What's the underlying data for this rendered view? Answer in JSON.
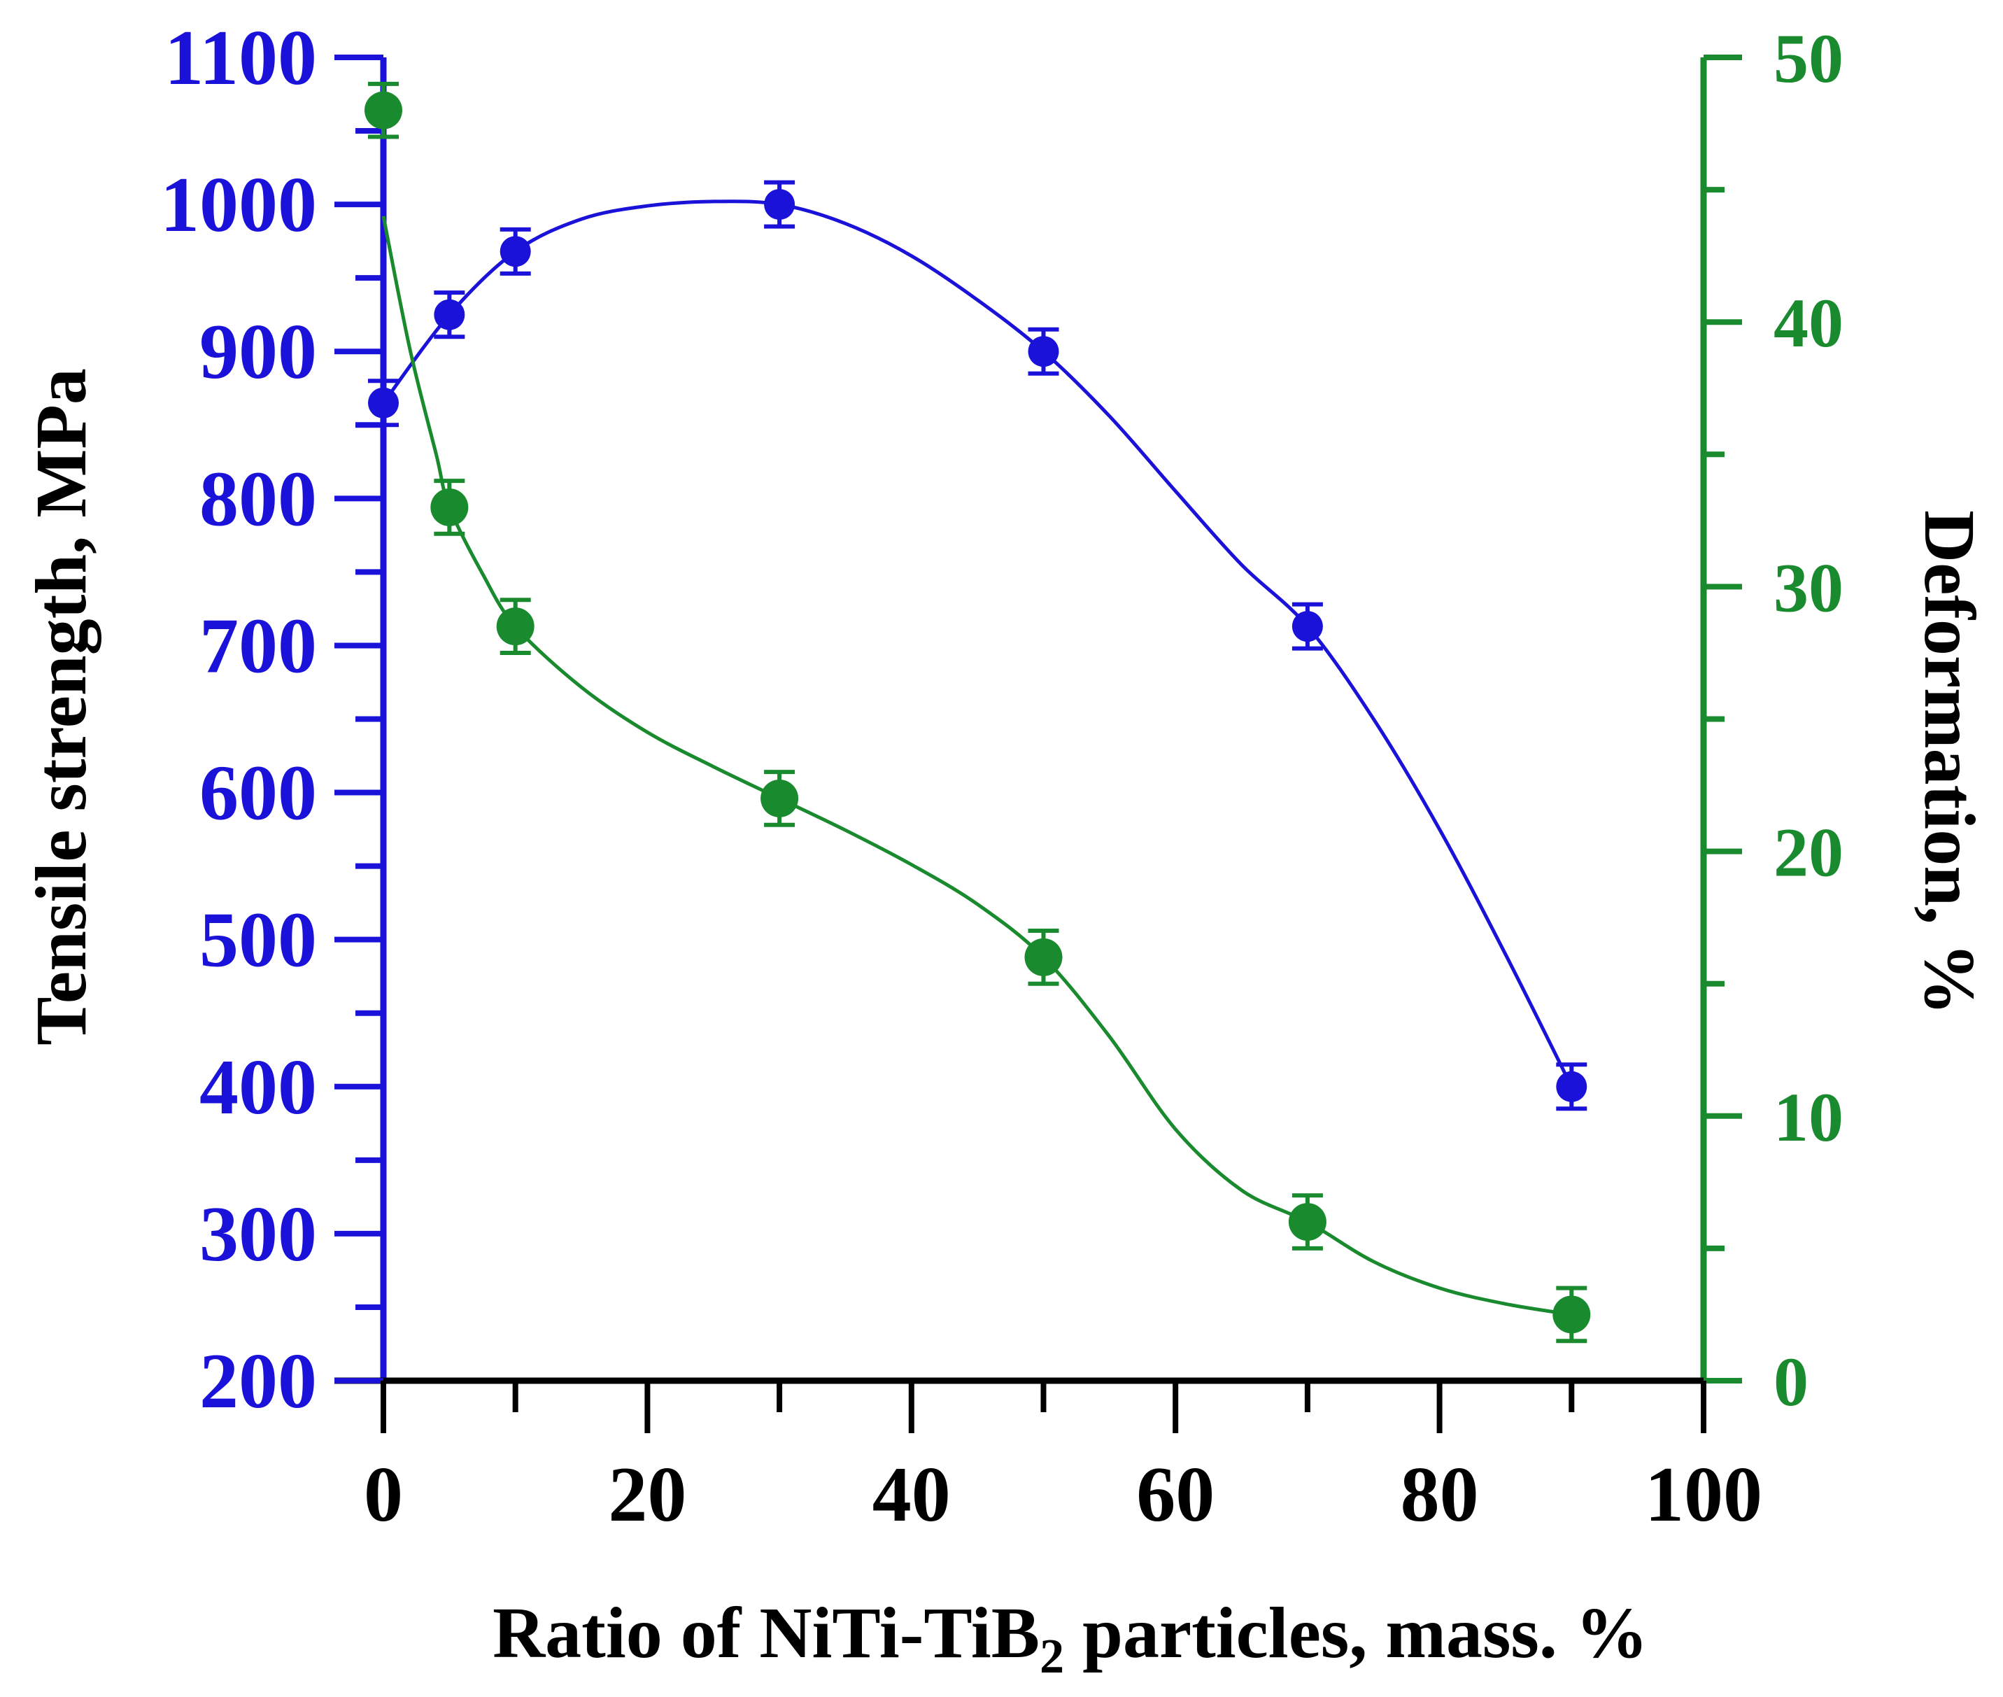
{
  "chart_data": {
    "type": "line",
    "title": "",
    "xlabel_main": "Ratio of NiTi-TiB",
    "xlabel_sub": "2",
    "xlabel_end": " particles, mass. %",
    "ylabel_left": "Tensile strength, MPa",
    "ylabel_right": "Deformation, %",
    "xlim": [
      0,
      100
    ],
    "xticks": [
      "0",
      "20",
      "40",
      "60",
      "80",
      "100"
    ],
    "ylim_left": [
      200,
      1100
    ],
    "yticks_left": [
      "200",
      "300",
      "400",
      "500",
      "600",
      "700",
      "800",
      "900",
      "1000",
      "1100"
    ],
    "ylim_right": [
      0,
      50
    ],
    "yticks_right": [
      "0",
      "10",
      "20",
      "30",
      "40",
      "50"
    ],
    "colors": {
      "left": "#1a12d8",
      "right": "#1a8a2e",
      "x": "#000000"
    },
    "series": [
      {
        "name": "Tensile strength",
        "axis": "left",
        "color": "#1a12d8",
        "x": [
          0,
          5,
          10,
          30,
          50,
          70,
          90
        ],
        "y": [
          865,
          925,
          968,
          1000,
          900,
          713,
          400
        ],
        "err": [
          15,
          15,
          15,
          15,
          15,
          15,
          15
        ],
        "curve": [
          [
            0,
            865
          ],
          [
            5,
            925
          ],
          [
            10,
            968
          ],
          [
            15,
            990
          ],
          [
            20,
            999
          ],
          [
            25,
            1002
          ],
          [
            30,
            1000
          ],
          [
            35,
            987
          ],
          [
            40,
            965
          ],
          [
            45,
            935
          ],
          [
            50,
            900
          ],
          [
            55,
            856
          ],
          [
            60,
            805
          ],
          [
            65,
            755
          ],
          [
            70,
            713
          ],
          [
            75,
            650
          ],
          [
            80,
            575
          ],
          [
            85,
            490
          ],
          [
            90,
            400
          ]
        ]
      },
      {
        "name": "Deformation",
        "axis": "right",
        "color": "#1a8a2e",
        "x": [
          0,
          5,
          10,
          30,
          50,
          70,
          90
        ],
        "y": [
          48,
          33,
          28.5,
          22,
          16,
          6,
          2.5
        ],
        "err": [
          1,
          1,
          1,
          1,
          1,
          1,
          1
        ],
        "curve": [
          [
            0,
            44
          ],
          [
            2,
            39
          ],
          [
            4,
            35
          ],
          [
            5,
            33
          ],
          [
            7.5,
            30.5
          ],
          [
            10,
            28.5
          ],
          [
            15,
            26.2
          ],
          [
            20,
            24.5
          ],
          [
            25,
            23.2
          ],
          [
            30,
            22
          ],
          [
            35,
            20.8
          ],
          [
            40,
            19.5
          ],
          [
            45,
            18
          ],
          [
            50,
            16
          ],
          [
            55,
            13
          ],
          [
            60,
            9.5
          ],
          [
            65,
            7.2
          ],
          [
            70,
            6
          ],
          [
            75,
            4.5
          ],
          [
            80,
            3.5
          ],
          [
            85,
            2.9
          ],
          [
            90,
            2.5
          ]
        ]
      }
    ]
  }
}
